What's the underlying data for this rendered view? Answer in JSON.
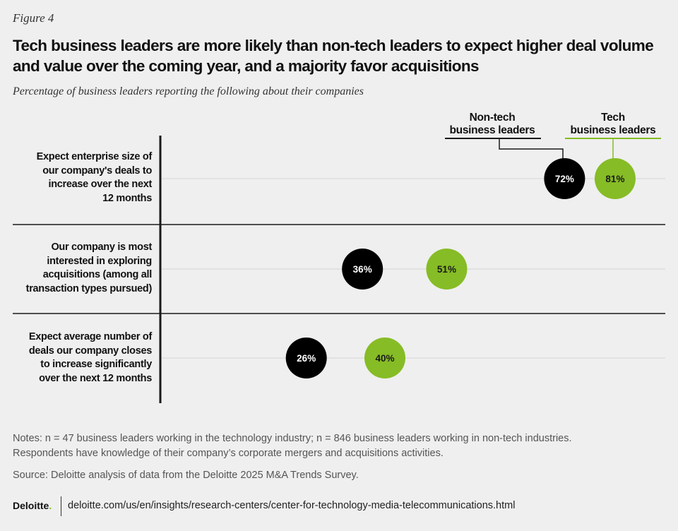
{
  "figure_label": "Figure 4",
  "title": "Tech business leaders are more likely than non-tech leaders to expect higher deal volume and value over the coming year, and a majority favor acquisitions",
  "subtitle": "Percentage of business leaders reporting the following about their companies",
  "chart_data": {
    "type": "dot",
    "title": "Tech business leaders are more likely than non-tech leaders to expect higher deal volume and value over the coming year, and a majority favor acquisitions",
    "categories": [
      "Expect enterprise size of our company's deals to increase over the next 12 months",
      "Our company is most interested in exploring acquisitions (among all transaction types pursued)",
      "Expect average number of deals our company closes to increase significantly over the next 12 months"
    ],
    "category_labels": [
      "Expect enterprise size of\nour company's deals to\nincrease over the next\n12 months",
      "Our company is most\ninterested in exploring\nacquisitions (among all\ntransaction types pursued)",
      "Expect average number of\ndeals our company closes\nto increase significantly\nover the next 12 months"
    ],
    "series": [
      {
        "name": "Non-tech business leaders",
        "legend_label": "Non-tech\nbusiness leaders",
        "color": "#000000",
        "values": [
          72,
          36,
          26
        ],
        "labels": [
          "72%",
          "36%",
          "26%"
        ]
      },
      {
        "name": "Tech business leaders",
        "legend_label": "Tech\nbusiness leaders",
        "color": "#86bc25",
        "values": [
          81,
          51,
          40
        ],
        "labels": [
          "81%",
          "51%",
          "40%"
        ]
      }
    ],
    "xlim": [
      0,
      100
    ],
    "unit": "%"
  },
  "notes": "Notes: n = 47 business leaders working in the technology industry; n = 846 business leaders working in non-tech industries. Respondents have knowledge of their company’s corporate mergers and acquisitions activities.",
  "source": "Source: Deloitte analysis of data from the Deloitte 2025 M&A Trends Survey.",
  "footer": {
    "brand": "Deloitte",
    "brand_dot": ".",
    "url": "deloitte.com/us/en/insights/research-centers/center-for-technology-media-telecommunications.html",
    "accent": "#86bc25"
  }
}
